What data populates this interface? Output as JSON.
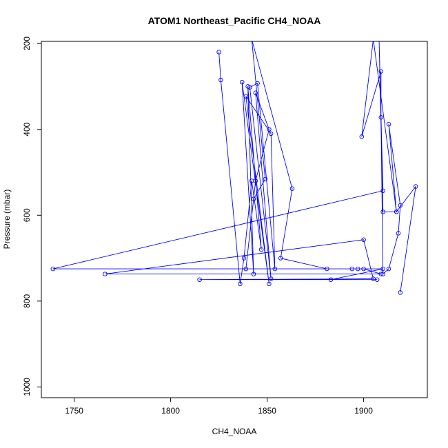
{
  "chart_data": {
    "type": "line",
    "title": "ATOM1 Northeast_Pacific CH4_NOAA",
    "xlabel": "CH4_NOAA",
    "ylabel": "Pressure (mbar)",
    "xlim": [
      1733,
      1933
    ],
    "ylim": [
      1025,
      195
    ],
    "x_ticks": [
      1750,
      1800,
      1850,
      1900
    ],
    "y_ticks": [
      200,
      400,
      600,
      800,
      1000
    ],
    "markers": "open-circle",
    "grid": false,
    "legend": "none",
    "color": "#0000ff",
    "series": [
      {
        "points": [
          {
            "x": 1825,
            "y": 220
          },
          {
            "x": 1826,
            "y": 285
          },
          {
            "x": 1836,
            "y": 760
          },
          {
            "x": 1838,
            "y": 700
          },
          {
            "x": 1842,
            "y": 520
          },
          {
            "x": 1847,
            "y": 680
          },
          {
            "x": 1840,
            "y": 300
          },
          {
            "x": 1843,
            "y": 737
          },
          {
            "x": 1837,
            "y": 290
          },
          {
            "x": 1851,
            "y": 760
          },
          {
            "x": 1839,
            "y": 323
          },
          {
            "x": 1852,
            "y": 410
          },
          {
            "x": 1854,
            "y": 725
          },
          {
            "x": 1845,
            "y": 293
          },
          {
            "x": 1841,
            "y": 302
          },
          {
            "x": 1852,
            "y": 748
          },
          {
            "x": 1844,
            "y": 315
          },
          {
            "x": 1851,
            "y": 400
          },
          {
            "x": 1844,
            "y": 520
          },
          {
            "x": 1839,
            "y": 725
          },
          {
            "x": 1843,
            "y": 562
          },
          {
            "x": 1849,
            "y": 516
          },
          {
            "x": 1842,
            "y": 190
          },
          {
            "x": 1863,
            "y": 538
          },
          {
            "x": 1857,
            "y": 700
          },
          {
            "x": 1881,
            "y": 725
          },
          {
            "x": 1894,
            "y": 725
          },
          {
            "x": 1897,
            "y": 725
          },
          {
            "x": 1910,
            "y": 725
          },
          {
            "x": 1883,
            "y": 750
          },
          {
            "x": 1907,
            "y": 750
          },
          {
            "x": 1815,
            "y": 750
          },
          {
            "x": 1905,
            "y": 748
          },
          {
            "x": 1900,
            "y": 657
          },
          {
            "x": 1766,
            "y": 737
          },
          {
            "x": 1909,
            "y": 737
          },
          {
            "x": 1900,
            "y": 725
          },
          {
            "x": 1739,
            "y": 725
          },
          {
            "x": 1910,
            "y": 543
          },
          {
            "x": 1908,
            "y": 190
          },
          {
            "x": 1910,
            "y": 592
          },
          {
            "x": 1917,
            "y": 592
          },
          {
            "x": 1905,
            "y": 190
          },
          {
            "x": 1899,
            "y": 417
          },
          {
            "x": 1909,
            "y": 265
          },
          {
            "x": 1909,
            "y": 372
          },
          {
            "x": 1910,
            "y": 737
          },
          {
            "x": 1913,
            "y": 725
          },
          {
            "x": 1918,
            "y": 642
          },
          {
            "x": 1919,
            "y": 577
          },
          {
            "x": 1913,
            "y": 388
          },
          {
            "x": 1917,
            "y": 592
          },
          {
            "x": 1927,
            "y": 533
          },
          {
            "x": 1919,
            "y": 780
          }
        ]
      }
    ]
  }
}
